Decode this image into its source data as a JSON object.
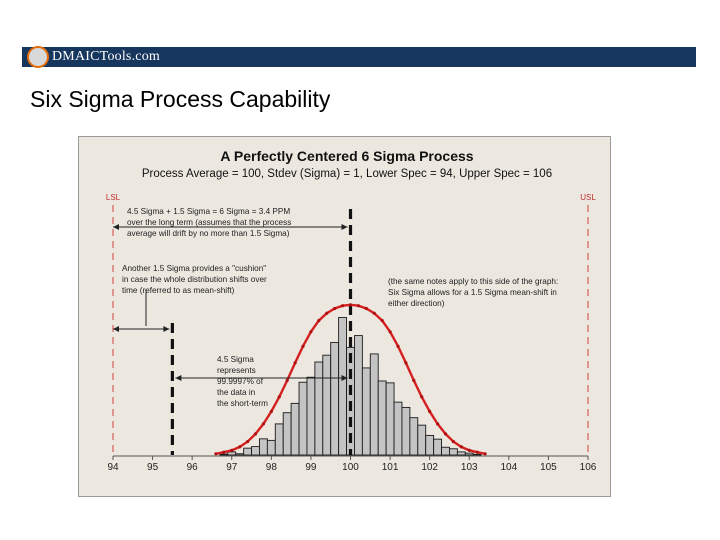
{
  "slide": {
    "logo_text": "DMAICTools.com",
    "title": "Six Sigma Process Capability"
  },
  "chart_data": {
    "type": "bar",
    "title": "A Perfectly Centered 6 Sigma Process",
    "subtitle": "Process Average = 100, Stdev (Sigma) = 1, Lower Spec = 94, Upper Spec = 106",
    "xlim": [
      94,
      106
    ],
    "x_ticks": [
      "94",
      "95",
      "96",
      "97",
      "98",
      "99",
      "100",
      "101",
      "102",
      "103",
      "104",
      "105",
      "106"
    ],
    "grid": false,
    "histogram": {
      "bin_width": 0.2,
      "x": [
        96.8,
        97.0,
        97.2,
        97.4,
        97.6,
        97.8,
        98.0,
        98.2,
        98.4,
        98.6,
        98.8,
        99.0,
        99.2,
        99.4,
        99.6,
        99.8,
        100.0,
        100.2,
        100.4,
        100.6,
        100.8,
        101.0,
        101.2,
        101.4,
        101.6,
        101.8,
        102.0,
        102.2,
        102.4,
        102.6,
        102.8,
        103.0,
        103.2
      ],
      "values": [
        0.3,
        1.0,
        0.4,
        2.2,
        2.7,
        5.2,
        4.7,
        10.0,
        13.6,
        16.6,
        23.4,
        25.0,
        29.9,
        32.1,
        36.2,
        44.2,
        34.6,
        38.4,
        28.0,
        32.5,
        23.8,
        23.2,
        17.0,
        15.3,
        12.0,
        9.6,
        6.3,
        5.1,
        2.5,
        2.0,
        1.0,
        0.6,
        0.2
      ]
    },
    "normal_curve": {
      "mean": 100,
      "sd": 1,
      "x": [
        96.6,
        96.8,
        97.0,
        97.2,
        97.4,
        97.6,
        97.8,
        98.0,
        98.2,
        98.4,
        98.6,
        98.8,
        99.0,
        99.2,
        99.4,
        99.6,
        99.8,
        100.0,
        100.2,
        100.4,
        100.6,
        100.8,
        101.0,
        101.2,
        101.4,
        101.6,
        101.8,
        102.0,
        102.2,
        102.4,
        102.6,
        102.8,
        103.0,
        103.2,
        103.4
      ],
      "y": [
        0.4,
        0.9,
        1.5,
        2.6,
        4.3,
        6.8,
        10.0,
        14.0,
        18.7,
        24.0,
        29.6,
        35.0,
        39.6,
        43.2,
        45.6,
        47.1,
        48.0,
        48.3,
        48.0,
        47.1,
        45.6,
        43.2,
        39.6,
        35.0,
        29.6,
        24.0,
        18.7,
        14.0,
        10.0,
        6.8,
        4.3,
        2.6,
        1.5,
        0.9,
        0.4
      ]
    },
    "spec_labels": {
      "lsl": "LSL",
      "usl": "USL"
    },
    "reference_lines": [
      {
        "x": 94,
        "label": "LSL"
      },
      {
        "x": 106,
        "label": "USL"
      },
      {
        "x": 95.5
      },
      {
        "x": 100
      }
    ],
    "annotations": {
      "a1": [
        "4.5 Sigma + 1.5 Sigma = 6 Sigma = 3.4 PPM",
        "over the long term (assumes that the process",
        "average will drift by no more than 1.5 Sigma)"
      ],
      "a2": [
        "Another 1.5 Sigma provides a \"cushion\"",
        "in case the whole distribution shifts over",
        "time (referred to as mean-shift)"
      ],
      "a3": [
        "(the same notes apply to this side of the graph:",
        "Six Sigma allows for a 1.5 Sigma mean-shift in",
        "either direction)"
      ],
      "a4": [
        "4.5 Sigma",
        "represents",
        "99.9997% of",
        "the data in",
        "the short-term"
      ]
    }
  }
}
